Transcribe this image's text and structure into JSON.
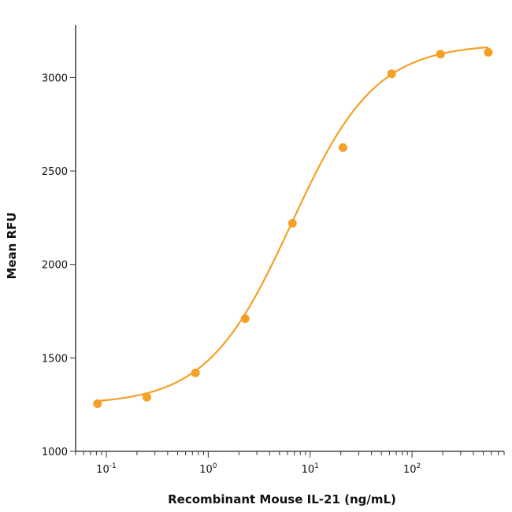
{
  "chart_data": {
    "type": "scatter",
    "xlabel": "Recombinant Mouse IL-21 (ng/mL)",
    "ylabel": "Mean RFU",
    "x_scale": "log",
    "xlim": [
      0.05,
      800
    ],
    "ylim": [
      1000,
      3280
    ],
    "x_ticks": [
      {
        "value": 0.1,
        "base": "10",
        "exp": "-1"
      },
      {
        "value": 1,
        "base": "10",
        "exp": "0"
      },
      {
        "value": 10,
        "base": "10",
        "exp": "1"
      },
      {
        "value": 100,
        "base": "10",
        "exp": "2"
      }
    ],
    "y_ticks": [
      {
        "value": 1000,
        "label": "1000"
      },
      {
        "value": 1500,
        "label": "1500"
      },
      {
        "value": 2000,
        "label": "2000"
      },
      {
        "value": 2500,
        "label": "2500"
      },
      {
        "value": 3000,
        "label": "3000"
      }
    ],
    "series": [
      {
        "color": "#F5A027",
        "points": [
          {
            "x": 0.082,
            "y": 1255
          },
          {
            "x": 0.25,
            "y": 1290
          },
          {
            "x": 0.75,
            "y": 1420
          },
          {
            "x": 2.3,
            "y": 1710
          },
          {
            "x": 6.7,
            "y": 2220
          },
          {
            "x": 21,
            "y": 2625
          },
          {
            "x": 63,
            "y": 3020
          },
          {
            "x": 190,
            "y": 3125
          },
          {
            "x": 560,
            "y": 3135
          }
        ],
        "fit": {
          "model": "4PL",
          "bottom": 1250,
          "top": 3180,
          "ec50": 6.5,
          "hill": 1.05
        }
      }
    ],
    "grid": false,
    "legend": "none"
  }
}
